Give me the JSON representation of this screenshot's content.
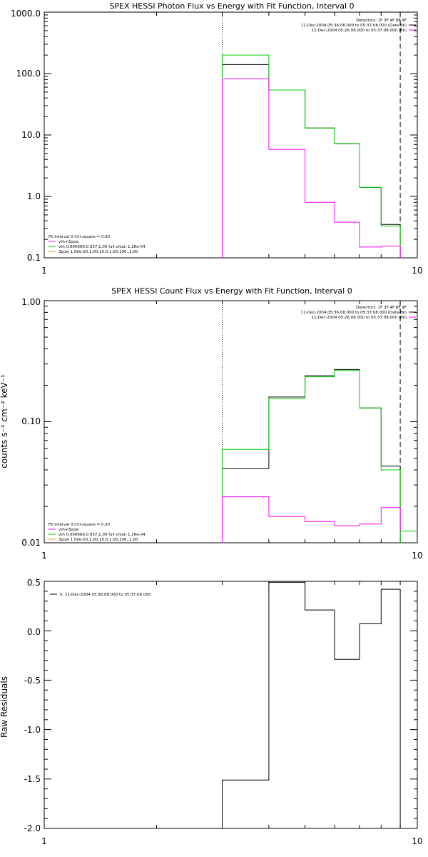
{
  "chart_data": [
    {
      "type": "line",
      "title": "SPEX HESSI Photon Flux vs Energy with Fit Function, Interval 0",
      "xscale": "log",
      "yscale": "log",
      "xlim": [
        1,
        10
      ],
      "ylim": [
        0.1,
        1000
      ],
      "xticks": [
        "1",
        "10"
      ],
      "yticks": [
        "0.1",
        "1.0",
        "10.0",
        "100.0",
        "1000.0"
      ],
      "xlabel": "",
      "ylabel": "",
      "vlines": [
        {
          "x": 3.0,
          "style": "dotted"
        },
        {
          "x": 9.0,
          "style": "dashed"
        }
      ],
      "legend_top": [
        "Detectors: 1F 3F 4F 8F 9F",
        "11-Dec-2004 05:36:08.000 to 05:37:08.000 (Data-Bk)",
        "11-Dec-2004 05:26:08.000 to 05:37:08.000 (Bk)"
      ],
      "legend_bottom": [
        "Fit Interval 0   Chi-square = 0.93",
        "vth+3pow",
        "vth 0.000666,0.937,1.00  full chian 1.26e-04",
        "3pow 1.00e-20,1.00,10.0,1.00,100.,1.00"
      ],
      "bin_edges": [
        3,
        4,
        5,
        6,
        7,
        8,
        9
      ],
      "series": [
        {
          "color": "#000000",
          "values": [
            140,
            54,
            13,
            7.2,
            1.4,
            0.35
          ]
        },
        {
          "color": "#00cc00",
          "values": [
            200,
            54,
            13,
            7.2,
            1.4,
            0.33
          ]
        },
        {
          "color": "#ff00ff",
          "values": [
            82,
            5.8,
            0.8,
            0.38,
            0.15,
            0.155
          ]
        }
      ]
    },
    {
      "type": "line",
      "title": "SPEX HESSI Count Flux vs Energy with Fit Function, Interval 0",
      "xscale": "log",
      "yscale": "log",
      "xlim": [
        1,
        10
      ],
      "ylim": [
        0.01,
        1.0
      ],
      "xticks": [
        "1",
        "10"
      ],
      "yticks": [
        "0.01",
        "0.10",
        "1.00"
      ],
      "xlabel": "",
      "ylabel": "counts s⁻¹ cm⁻² keV⁻¹",
      "vlines": [
        {
          "x": 3.0,
          "style": "dotted"
        },
        {
          "x": 9.0,
          "style": "dashed"
        }
      ],
      "legend_top": [
        "Detectors: 1F 3F 4F 8F 9F",
        "11-Dec-2004 05:36:08.000 to 05:37:08.000 (Data-Bk)",
        "11-Dec-2004 05:26:08.000 to 05:37:08.000 (Bk)"
      ],
      "legend_bottom": [
        "Fit Interval 0   Chi-square = 0.93",
        "vth+3pow",
        "vth 0.000666,0.937,1.00  full chian 1.26e-04",
        "3pow 1.00e-20,1.00,10.0,1.00,100.,1.00"
      ],
      "bin_edges": [
        3,
        4,
        5,
        6,
        7,
        8,
        9
      ],
      "series": [
        {
          "color": "#000000",
          "values": [
            0.041,
            0.16,
            0.24,
            0.27,
            0.13,
            0.043
          ]
        },
        {
          "color": "#00cc00",
          "values": [
            0.059,
            0.155,
            0.235,
            0.265,
            0.13,
            0.04
          ]
        },
        {
          "color": "#ff00ff",
          "values": [
            0.024,
            0.0165,
            0.015,
            0.0138,
            0.0143,
            0.0195
          ]
        }
      ],
      "extra_green_bin": {
        "from": 9,
        "to": 10,
        "value": 0.0125
      }
    },
    {
      "type": "line",
      "title": "",
      "xscale": "log",
      "yscale": "linear",
      "xlim": [
        1,
        10
      ],
      "ylim": [
        -2.0,
        0.5
      ],
      "xticks": [
        "1",
        "10"
      ],
      "yticks": [
        "-2.0",
        "-1.5",
        "-1.0",
        "-0.5",
        "0.0",
        "0.5"
      ],
      "xlabel": "",
      "ylabel": "Raw Residuals",
      "legend_top": [
        "0. 11-Dec-2004 05:36:08.000 to 05:37:08.000"
      ],
      "bin_edges": [
        3,
        4,
        5,
        6,
        7,
        8,
        9
      ],
      "series": [
        {
          "color": "#000000",
          "values": [
            -1.51,
            0.49,
            0.21,
            -0.29,
            0.07,
            0.42
          ]
        }
      ]
    }
  ]
}
